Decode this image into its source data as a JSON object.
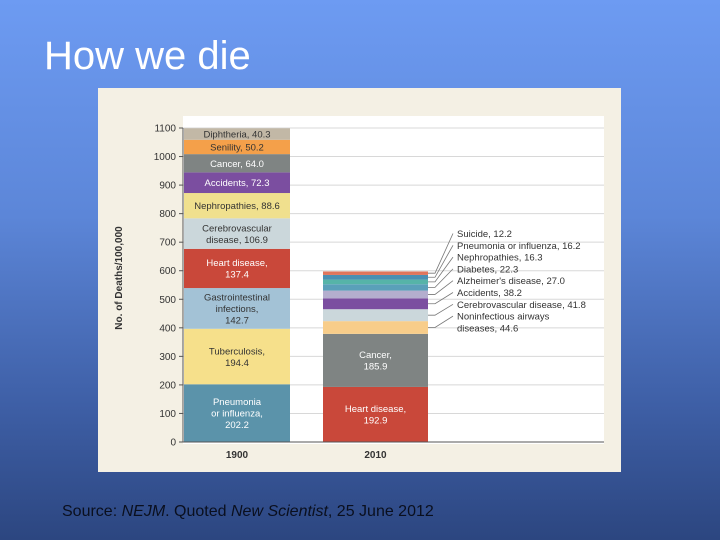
{
  "slide": {
    "title": "How we die",
    "source_prefix": "Source: ",
    "source_journal": "NEJM",
    "source_middle": ". Quoted ",
    "source_magazine": "New Scientist",
    "source_date": ", 25 June 2012"
  },
  "chart_data": {
    "type": "bar",
    "stacked": true,
    "title": "",
    "xlabel": "",
    "ylabel": "No. of Deaths/100,000",
    "categories": [
      "1900",
      "2010"
    ],
    "ylim": [
      0,
      1100
    ],
    "yticks": [
      0,
      100,
      200,
      300,
      400,
      500,
      600,
      700,
      800,
      900,
      1000,
      1100
    ],
    "grid": true,
    "series_1900": [
      {
        "name": "Pneumonia or influenza",
        "value": 202.2,
        "color": "#5b93aa",
        "label_lines": [
          "Pneumonia",
          "or influenza,",
          "202.2"
        ],
        "label_color": "#ffffff"
      },
      {
        "name": "Tuberculosis",
        "value": 194.4,
        "color": "#f6e08b",
        "label_lines": [
          "Tuberculosis,",
          "194.4"
        ],
        "label_color": "#333333"
      },
      {
        "name": "Gastrointestinal infections",
        "value": 142.7,
        "color": "#a3c2d6",
        "label_lines": [
          "Gastrointestinal",
          "infections,",
          "142.7"
        ],
        "label_color": "#333333"
      },
      {
        "name": "Heart disease",
        "value": 137.4,
        "color": "#c9483a",
        "label_lines": [
          "Heart disease,",
          "137.4"
        ],
        "label_color": "#ffffff"
      },
      {
        "name": "Cerebrovascular disease",
        "value": 106.9,
        "color": "#cbd7db",
        "label_lines": [
          "Cerebrovascular",
          "disease, 106.9"
        ],
        "label_color": "#333333"
      },
      {
        "name": "Nephropathies",
        "value": 88.6,
        "color": "#f0e08e",
        "label_lines": [
          "Nephropathies, 88.6"
        ],
        "label_color": "#333333"
      },
      {
        "name": "Accidents",
        "value": 72.3,
        "color": "#7b4ea0",
        "label_lines": [
          "Accidents, 72.3"
        ],
        "label_color": "#ffffff"
      },
      {
        "name": "Cancer",
        "value": 64.0,
        "color": "#7f8483",
        "label_lines": [
          "Cancer, 64.0"
        ],
        "label_color": "#ffffff"
      },
      {
        "name": "Senility",
        "value": 50.2,
        "color": "#f4a04a",
        "label_lines": [
          "Senility, 50.2"
        ],
        "label_color": "#333333"
      },
      {
        "name": "Diphtheria",
        "value": 40.3,
        "color": "#c2b8a6",
        "label_lines": [
          "Diphtheria, 40.3"
        ],
        "label_color": "#333333"
      }
    ],
    "series_2010": [
      {
        "name": "Heart disease",
        "value": 192.9,
        "color": "#c9483a",
        "label_lines": [
          "Heart disease,",
          "192.9"
        ],
        "label_color": "#ffffff"
      },
      {
        "name": "Cancer",
        "value": 185.9,
        "color": "#7f8483",
        "label_lines": [
          "Cancer,",
          "185.9"
        ],
        "label_color": "#ffffff"
      },
      {
        "name": "Noninfectious airways diseases",
        "value": 44.6,
        "color": "#f8cd8a"
      },
      {
        "name": "Cerebrovascular disease",
        "value": 41.8,
        "color": "#cbd7db"
      },
      {
        "name": "Accidents",
        "value": 38.2,
        "color": "#7b4ea0"
      },
      {
        "name": "Alzheimer's disease",
        "value": 27.0,
        "color": "#b4aece"
      },
      {
        "name": "Diabetes",
        "value": 22.3,
        "color": "#5aa0b9"
      },
      {
        "name": "Nephropathies",
        "value": 16.3,
        "color": "#56b4a8"
      },
      {
        "name": "Pneumonia or influenza",
        "value": 16.2,
        "color": "#4a8fb3"
      },
      {
        "name": "Suicide",
        "value": 12.2,
        "color": "#e0755c"
      }
    ],
    "annotations_2010": [
      {
        "segment": "Suicide",
        "text": "Suicide, 12.2"
      },
      {
        "segment": "Pneumonia or influenza",
        "text": "Pneumonia or influenza, 16.2"
      },
      {
        "segment": "Nephropathies",
        "text": "Nephropathies, 16.3"
      },
      {
        "segment": "Diabetes",
        "text": "Diabetes, 22.3"
      },
      {
        "segment": "Alzheimer's disease",
        "text": "Alzheimer's disease, 27.0"
      },
      {
        "segment": "Accidents",
        "text": "Accidents, 38.2"
      },
      {
        "segment": "Cerebrovascular disease",
        "text": "Cerebrovascular disease, 41.8"
      },
      {
        "segment": "Noninfectious airways diseases",
        "text": "Noninfectious airways diseases, 44.6",
        "text_lines": [
          "Noninfectious airways",
          "diseases, 44.6"
        ]
      }
    ]
  }
}
